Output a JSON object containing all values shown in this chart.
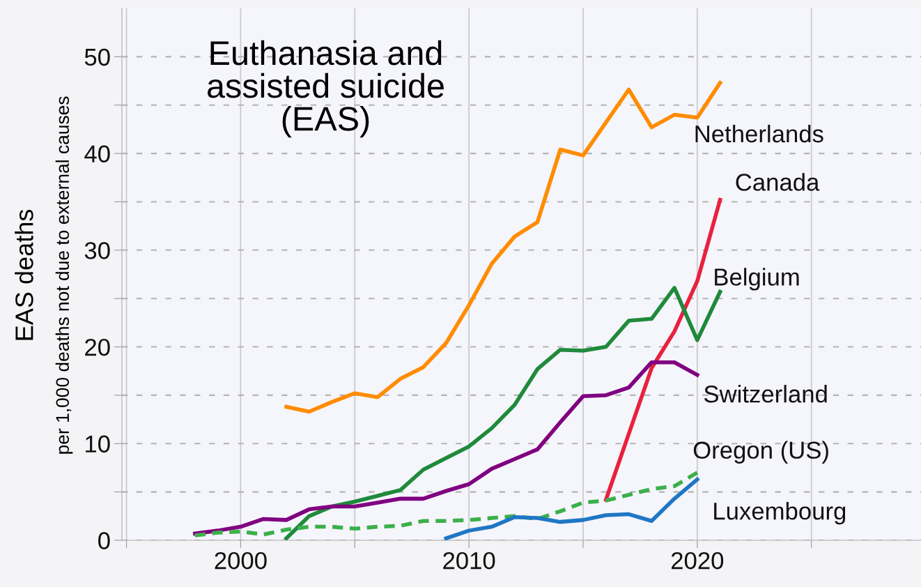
{
  "chart_data": {
    "type": "line",
    "title": "Euthanasia and\nassisted suicide\n(EAS)",
    "ylabel": "EAS deaths\nper 1,000 deaths not due to external causes",
    "xlim": [
      1994.8,
      2029.8
    ],
    "ylim": [
      0,
      55
    ],
    "xticks": [
      {
        "value": 1995,
        "label": null
      },
      2000,
      {
        "value": 2005,
        "label": null
      },
      2010,
      {
        "value": 2015,
        "label": null
      },
      2020,
      {
        "value": 2025,
        "label": null
      }
    ],
    "yticks": [
      0,
      {
        "value": 5,
        "label": null
      },
      10,
      {
        "value": 15,
        "label": null
      },
      20,
      {
        "value": 25,
        "label": null
      },
      30,
      {
        "value": 35,
        "label": null
      },
      40,
      {
        "value": 45,
        "label": null
      },
      50
    ],
    "grid": true,
    "legend": false,
    "marker": "none",
    "series": [
      {
        "name": "Netherlands",
        "color": "#ff8c00",
        "x": [
          2002,
          2003,
          2004,
          2005,
          2006,
          2007,
          2008,
          2009,
          2010,
          2011,
          2012,
          2013,
          2014,
          2015,
          2016,
          2017,
          2018,
          2019,
          2020,
          2021
        ],
        "values": [
          13.8,
          13.3,
          14.3,
          15.2,
          14.8,
          16.7,
          17.9,
          20.4,
          24.3,
          28.6,
          31.4,
          32.9,
          40.4,
          39.8,
          43.2,
          46.6,
          42.7,
          44.0,
          43.7,
          47.3
        ]
      },
      {
        "name": "Canada",
        "color": "#e8213f",
        "x": [
          2016,
          2017,
          2018,
          2019,
          2020,
          2021
        ],
        "values": [
          4.2,
          11.0,
          17.8,
          21.6,
          26.8,
          35.2
        ]
      },
      {
        "name": "Belgium",
        "color": "#1f8a3b",
        "x": [
          2002,
          2003,
          2004,
          2005,
          2006,
          2007,
          2008,
          2009,
          2010,
          2011,
          2012,
          2013,
          2014,
          2015,
          2016,
          2017,
          2018,
          2019,
          2020,
          2021
        ],
        "values": [
          0.2,
          2.5,
          3.5,
          4.0,
          4.6,
          5.2,
          7.3,
          8.5,
          9.7,
          11.6,
          14.0,
          17.7,
          19.7,
          19.6,
          20.0,
          22.7,
          22.9,
          26.1,
          20.7,
          25.7
        ]
      },
      {
        "name": "Switzerland",
        "color": "#800080",
        "x": [
          1998,
          1999,
          2000,
          2001,
          2002,
          2003,
          2004,
          2005,
          2006,
          2007,
          2008,
          2009,
          2010,
          2011,
          2012,
          2013,
          2014,
          2015,
          2016,
          2017,
          2018,
          2019,
          2020
        ],
        "values": [
          0.7,
          1.0,
          1.4,
          2.2,
          2.1,
          3.2,
          3.5,
          3.5,
          3.9,
          4.3,
          4.3,
          5.1,
          5.8,
          7.4,
          8.4,
          9.4,
          12.2,
          14.9,
          15.0,
          15.8,
          18.4,
          18.4,
          17.1
        ]
      },
      {
        "name": "Oregon (US)",
        "color": "#3cb04a",
        "line_style": "dashed",
        "x": [
          1998,
          1999,
          2000,
          2001,
          2002,
          2003,
          2004,
          2005,
          2006,
          2007,
          2008,
          2009,
          2010,
          2011,
          2012,
          2013,
          2014,
          2015,
          2016,
          2017,
          2018,
          2019,
          2020
        ],
        "values": [
          0.5,
          0.8,
          0.9,
          0.6,
          1.1,
          1.4,
          1.4,
          1.2,
          1.4,
          1.5,
          2.0,
          2.0,
          2.1,
          2.3,
          2.5,
          2.2,
          3.0,
          3.9,
          4.1,
          4.7,
          5.3,
          5.6,
          7.0
        ]
      },
      {
        "name": "Luxembourg",
        "color": "#1f77c4",
        "x": [
          2009,
          2010,
          2011,
          2012,
          2013,
          2014,
          2015,
          2016,
          2017,
          2018,
          2019,
          2020
        ],
        "values": [
          0.2,
          1.0,
          1.4,
          2.4,
          2.3,
          1.9,
          2.1,
          2.6,
          2.7,
          2.0,
          4.3,
          6.3
        ]
      }
    ]
  }
}
